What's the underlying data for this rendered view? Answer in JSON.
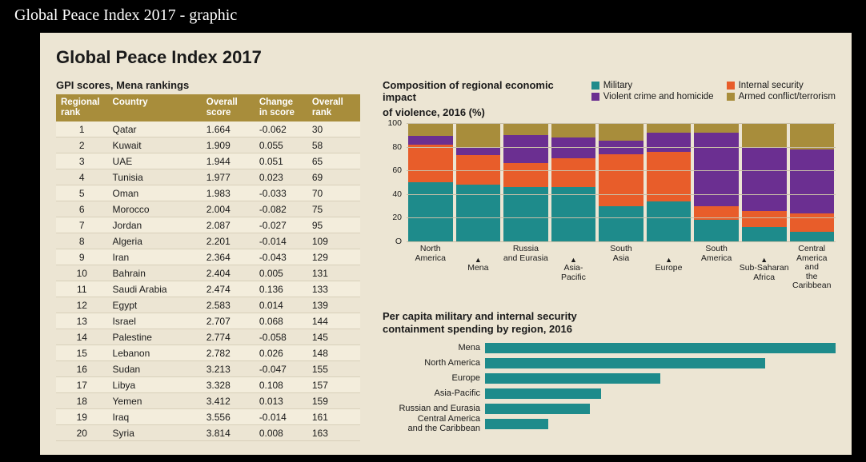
{
  "page_title": "Global Peace Index 2017 - graphic",
  "graphic": {
    "title": "Global Peace Index 2017",
    "background_color": "#ece5d3",
    "text_color": "#1a1a1a"
  },
  "table": {
    "subtitle": "GPI scores, Mena rankings",
    "header_bg": "#a88d3b",
    "header_fg": "#ffffff",
    "row_alt_bg": "#f3eddc",
    "row_border": "#d8d0ba",
    "columns": [
      {
        "key": "regional_rank",
        "label_line1": "Regional",
        "label_line2": "rank"
      },
      {
        "key": "country",
        "label_line1": "Country",
        "label_line2": ""
      },
      {
        "key": "overall_score",
        "label_line1": "Overall",
        "label_line2": "score"
      },
      {
        "key": "change_score",
        "label_line1": "Change",
        "label_line2": "in score"
      },
      {
        "key": "overall_rank",
        "label_line1": "Overall",
        "label_line2": "rank"
      }
    ],
    "rows": [
      {
        "rr": "1",
        "country": "Qatar",
        "score": "1.664",
        "change": "-0.062",
        "or": "30"
      },
      {
        "rr": "2",
        "country": "Kuwait",
        "score": "1.909",
        "change": "0.055",
        "or": "58"
      },
      {
        "rr": "3",
        "country": "UAE",
        "score": "1.944",
        "change": "0.051",
        "or": "65"
      },
      {
        "rr": "4",
        "country": "Tunisia",
        "score": "1.977",
        "change": "0.023",
        "or": "69"
      },
      {
        "rr": "5",
        "country": "Oman",
        "score": "1.983",
        "change": "-0.033",
        "or": "70"
      },
      {
        "rr": "6",
        "country": "Morocco",
        "score": "2.004",
        "change": "-0.082",
        "or": "75"
      },
      {
        "rr": "7",
        "country": "Jordan",
        "score": "2.087",
        "change": "-0.027",
        "or": "95"
      },
      {
        "rr": "8",
        "country": "Algeria",
        "score": "2.201",
        "change": "-0.014",
        "or": "109"
      },
      {
        "rr": "9",
        "country": "Iran",
        "score": "2.364",
        "change": "-0.043",
        "or": "129"
      },
      {
        "rr": "10",
        "country": "Bahrain",
        "score": "2.404",
        "change": "0.005",
        "or": "131"
      },
      {
        "rr": "11",
        "country": "Saudi Arabia",
        "score": "2.474",
        "change": "0.136",
        "or": "133"
      },
      {
        "rr": "12",
        "country": "Egypt",
        "score": "2.583",
        "change": "0.014",
        "or": "139"
      },
      {
        "rr": "13",
        "country": "Israel",
        "score": "2.707",
        "change": "0.068",
        "or": "144"
      },
      {
        "rr": "14",
        "country": "Palestine",
        "score": "2.774",
        "change": "-0.058",
        "or": "145"
      },
      {
        "rr": "15",
        "country": "Lebanon",
        "score": "2.782",
        "change": "0.026",
        "or": "148"
      },
      {
        "rr": "16",
        "country": "Sudan",
        "score": "3.213",
        "change": "-0.047",
        "or": "155"
      },
      {
        "rr": "17",
        "country": "Libya",
        "score": "3.328",
        "change": "0.108",
        "or": "157"
      },
      {
        "rr": "18",
        "country": "Yemen",
        "score": "3.412",
        "change": "0.013",
        "or": "159"
      },
      {
        "rr": "19",
        "country": "Iraq",
        "score": "3.556",
        "change": "-0.014",
        "or": "161"
      },
      {
        "rr": "20",
        "country": "Syria",
        "score": "3.814",
        "change": "0.008",
        "or": "163"
      }
    ]
  },
  "stacked_chart": {
    "title_line1": "Composition of regional economic impact",
    "title_line2": "of violence, 2016 (%)",
    "ylim": [
      0,
      100
    ],
    "ytick_step": 20,
    "grid_color": "#c9c0a8",
    "series": [
      {
        "key": "military",
        "label": "Military",
        "color": "#1e8b8b"
      },
      {
        "key": "internal",
        "label": "Internal security",
        "color": "#e85d2a"
      },
      {
        "key": "violent",
        "label": "Violent crime and homicide",
        "color": "#6b2f91"
      },
      {
        "key": "armed",
        "label": "Armed conflict/terrorism",
        "color": "#a88d3b"
      }
    ],
    "categories": [
      {
        "label": "North\nAmerica",
        "tier": "upper",
        "values": {
          "military": 50,
          "internal": 32,
          "violent": 7,
          "armed": 11
        }
      },
      {
        "label": "Mena",
        "tier": "lower",
        "values": {
          "military": 48,
          "internal": 25,
          "violent": 6,
          "armed": 21
        }
      },
      {
        "label": "Russia\nand Eurasia",
        "tier": "upper",
        "values": {
          "military": 46,
          "internal": 20,
          "violent": 24,
          "armed": 10
        }
      },
      {
        "label": "Asia-\nPacific",
        "tier": "lower",
        "values": {
          "military": 46,
          "internal": 24,
          "violent": 18,
          "armed": 12
        }
      },
      {
        "label": "South\nAsia",
        "tier": "upper",
        "values": {
          "military": 30,
          "internal": 44,
          "violent": 11,
          "armed": 15
        }
      },
      {
        "label": "Europe",
        "tier": "lower",
        "values": {
          "military": 34,
          "internal": 42,
          "violent": 16,
          "armed": 8
        }
      },
      {
        "label": "South\nAmerica",
        "tier": "upper",
        "values": {
          "military": 18,
          "internal": 12,
          "violent": 62,
          "armed": 8
        }
      },
      {
        "label": "Sub-Saharan\nAfrica",
        "tier": "lower",
        "values": {
          "military": 12,
          "internal": 14,
          "violent": 54,
          "armed": 20
        }
      },
      {
        "label": "Central\nAmerica and\nthe Caribbean",
        "tier": "upper",
        "values": {
          "military": 8,
          "internal": 16,
          "violent": 54,
          "armed": 22
        }
      }
    ]
  },
  "hbar_chart": {
    "title_line1": "Per capita military and internal security",
    "title_line2": "containment spending by region, 2016",
    "bar_color": "#1e8b8b",
    "max": 100,
    "rows": [
      {
        "label": "Mena",
        "value": 100
      },
      {
        "label": "North America",
        "value": 80
      },
      {
        "label": "Europe",
        "value": 50
      },
      {
        "label": "Asia-Pacific",
        "value": 33
      },
      {
        "label": "Russian and Eurasia",
        "value": 30
      },
      {
        "label": "Central America\nand the Caribbean",
        "value": 18
      }
    ]
  }
}
